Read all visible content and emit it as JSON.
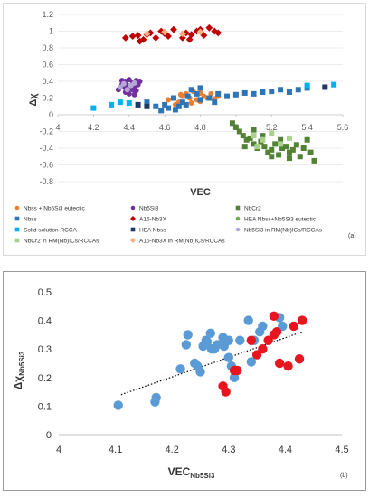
{
  "chart_data": [
    {
      "type": "scatter",
      "panel_label": "(a)",
      "xlabel": "VEC",
      "ylabel": "Δχ",
      "xlim": [
        4,
        5.6
      ],
      "ylim": [
        -0.8,
        1.2
      ],
      "xticks": [
        "4",
        "4.2",
        "4.4",
        "4.6",
        "4.8",
        "5",
        "5.2",
        "5.4",
        "5.6"
      ],
      "yticks": [
        "1.2",
        "1",
        "0.8",
        "0.6",
        "0.4",
        "0.2",
        "0",
        "-0.2",
        "-0.4",
        "-0.6",
        "-0.8"
      ],
      "grid": true,
      "legend_position": "bottom",
      "series": [
        {
          "name": "Nbss + Nb5Si3 eutectic",
          "color": "#ed7d31",
          "marker": "circle",
          "points": [
            [
              4.62,
              0.18
            ],
            [
              4.65,
              0.2
            ],
            [
              4.68,
              0.15
            ],
            [
              4.7,
              0.22
            ],
            [
              4.72,
              0.25
            ],
            [
              4.74,
              0.2
            ],
            [
              4.76,
              0.28
            ],
            [
              4.78,
              0.18
            ],
            [
              4.8,
              0.16
            ],
            [
              4.82,
              0.22
            ],
            [
              4.84,
              0.2
            ],
            [
              4.86,
              0.25
            ],
            [
              4.66,
              0.12
            ],
            [
              4.75,
              0.14
            ],
            [
              4.88,
              0.19
            ],
            [
              4.9,
              0.22
            ],
            [
              4.69,
              0.24
            ],
            [
              4.8,
              0.26
            ]
          ]
        },
        {
          "name": "Nb5Si3",
          "color": "#7030a0",
          "marker": "circle",
          "points": [
            [
              4.34,
              0.3
            ],
            [
              4.36,
              0.36
            ],
            [
              4.37,
              0.33
            ],
            [
              4.38,
              0.4
            ],
            [
              4.39,
              0.35
            ],
            [
              4.4,
              0.42
            ],
            [
              4.41,
              0.31
            ],
            [
              4.42,
              0.38
            ],
            [
              4.43,
              0.34
            ],
            [
              4.44,
              0.29
            ],
            [
              4.45,
              0.36
            ],
            [
              4.46,
              0.4
            ],
            [
              4.38,
              0.27
            ],
            [
              4.4,
              0.25
            ],
            [
              4.42,
              0.3
            ],
            [
              4.44,
              0.41
            ],
            [
              4.36,
              0.41
            ],
            [
              4.43,
              0.24
            ]
          ]
        },
        {
          "name": "NbCr2",
          "color": "#548235",
          "marker": "square",
          "points": [
            [
              4.98,
              -0.1
            ],
            [
              5.0,
              -0.15
            ],
            [
              5.02,
              -0.2
            ],
            [
              5.04,
              -0.25
            ],
            [
              5.06,
              -0.3
            ],
            [
              5.08,
              -0.28
            ],
            [
              5.1,
              -0.35
            ],
            [
              5.12,
              -0.4
            ],
            [
              5.14,
              -0.32
            ],
            [
              5.16,
              -0.38
            ],
            [
              5.18,
              -0.45
            ],
            [
              5.2,
              -0.42
            ],
            [
              5.22,
              -0.35
            ],
            [
              5.24,
              -0.48
            ],
            [
              5.26,
              -0.4
            ],
            [
              5.28,
              -0.38
            ],
            [
              5.3,
              -0.45
            ],
            [
              5.32,
              -0.42
            ],
            [
              5.34,
              -0.36
            ],
            [
              5.36,
              -0.5
            ],
            [
              5.38,
              -0.4
            ],
            [
              5.4,
              -0.3
            ],
            [
              5.42,
              -0.45
            ],
            [
              5.44,
              -0.55
            ],
            [
              5.15,
              -0.25
            ],
            [
              5.1,
              -0.18
            ],
            [
              5.25,
              -0.3
            ],
            [
              5.05,
              -0.38
            ],
            [
              5.2,
              -0.5
            ],
            [
              5.3,
              -0.52
            ]
          ]
        },
        {
          "name": "Nbss",
          "color": "#2e75b6",
          "marker": "square",
          "points": [
            [
              4.5,
              0.15
            ],
            [
              4.55,
              0.1
            ],
            [
              4.6,
              0.12
            ],
            [
              4.65,
              0.2
            ],
            [
              4.68,
              0.1
            ],
            [
              4.7,
              0.15
            ],
            [
              4.73,
              0.22
            ],
            [
              4.75,
              0.3
            ],
            [
              4.78,
              0.25
            ],
            [
              4.8,
              0.32
            ],
            [
              4.85,
              0.2
            ],
            [
              4.9,
              0.25
            ],
            [
              4.95,
              0.22
            ],
            [
              5.0,
              0.24
            ],
            [
              5.05,
              0.26
            ],
            [
              5.1,
              0.25
            ],
            [
              5.15,
              0.27
            ],
            [
              5.2,
              0.28
            ],
            [
              5.25,
              0.3
            ],
            [
              5.3,
              0.27
            ],
            [
              5.35,
              0.3
            ],
            [
              5.4,
              0.32
            ],
            [
              4.58,
              0.05
            ],
            [
              4.62,
              0.08
            ],
            [
              4.66,
              0.06
            ],
            [
              4.72,
              0.12
            ],
            [
              4.8,
              0.18
            ],
            [
              4.88,
              0.15
            ]
          ]
        },
        {
          "name": "A15-Nb3X",
          "color": "#c00000",
          "marker": "diamond",
          "points": [
            [
              4.38,
              0.92
            ],
            [
              4.42,
              0.94
            ],
            [
              4.45,
              0.95
            ],
            [
              4.48,
              0.9
            ],
            [
              4.5,
              0.96
            ],
            [
              4.52,
              0.98
            ],
            [
              4.55,
              0.92
            ],
            [
              4.58,
              1.0
            ],
            [
              4.6,
              0.97
            ],
            [
              4.62,
              0.94
            ],
            [
              4.65,
              1.02
            ],
            [
              4.7,
              0.92
            ],
            [
              4.72,
              0.98
            ],
            [
              4.75,
              0.96
            ],
            [
              4.78,
              1.0
            ],
            [
              4.8,
              1.02
            ],
            [
              4.82,
              0.95
            ],
            [
              4.85,
              1.04
            ],
            [
              4.88,
              1.0
            ],
            [
              4.9,
              0.98
            ],
            [
              4.46,
              0.88
            ],
            [
              4.74,
              0.9
            ]
          ]
        },
        {
          "name": "HEA Nbss+Nb5Si3 eutectic",
          "color": "#70ad47",
          "marker": "circle",
          "points": []
        },
        {
          "name": "Solid solution RCCA",
          "color": "#00b0f0",
          "marker": "square",
          "points": [
            [
              4.2,
              0.08
            ],
            [
              4.3,
              0.12
            ],
            [
              4.35,
              0.15
            ],
            [
              4.4,
              0.14
            ],
            [
              5.4,
              0.35
            ],
            [
              5.55,
              0.36
            ]
          ]
        },
        {
          "name": "HEA Nbss",
          "color": "#1f3864",
          "marker": "square",
          "points": [
            [
              4.45,
              0.12
            ],
            [
              4.5,
              0.1
            ],
            [
              5.5,
              0.33
            ]
          ]
        },
        {
          "name": "Nb5Si3 in RM(Nb)ICs/RCCAs",
          "color": "#b4a7d6",
          "marker": "circle",
          "points": [
            [
              4.35,
              0.33
            ],
            [
              4.37,
              0.37
            ],
            [
              4.39,
              0.3
            ],
            [
              4.41,
              0.35
            ],
            [
              4.43,
              0.38
            ]
          ]
        },
        {
          "name": "NbCr2 in RM(Nb)ICs/RCCAs",
          "color": "#a9d18e",
          "marker": "square",
          "points": [
            [
              5.1,
              -0.25
            ],
            [
              5.15,
              -0.3
            ],
            [
              5.2,
              -0.22
            ],
            [
              5.25,
              -0.35
            ],
            [
              5.3,
              -0.28
            ],
            [
              5.12,
              -0.38
            ]
          ]
        },
        {
          "name": "A15-Nb3X in RM(Nb)ICs/RCCAs",
          "color": "#f4b183",
          "marker": "diamond",
          "points": [
            [
              4.5,
              0.97
            ],
            [
              4.6,
              0.99
            ],
            [
              4.7,
              0.97
            ],
            [
              4.8,
              0.99
            ]
          ]
        }
      ]
    },
    {
      "type": "scatter",
      "panel_label": "(b)",
      "xlabel": "VEC",
      "xlabel_sub": "Nb5Si3",
      "ylabel": "Δχ",
      "ylabel_sub": "Nb5Si3",
      "xlim": [
        4,
        4.5
      ],
      "ylim": [
        0,
        0.5
      ],
      "xticks": [
        "4",
        "4.1",
        "4.2",
        "4.3",
        "4.4",
        "4.5"
      ],
      "yticks": [
        "0.5",
        "0.4",
        "0.3",
        "0.2",
        "0.1",
        "0"
      ],
      "grid": false,
      "trendline": {
        "style": "dotted",
        "color": "#000000",
        "from": [
          4.11,
          0.14
        ],
        "to": [
          4.43,
          0.36
        ]
      },
      "series": [
        {
          "color": "#5b9bd5",
          "points": [
            [
              4.105,
              0.103
            ],
            [
              4.17,
              0.115
            ],
            [
              4.172,
              0.13
            ],
            [
              4.215,
              0.23
            ],
            [
              4.225,
              0.315
            ],
            [
              4.228,
              0.35
            ],
            [
              4.24,
              0.25
            ],
            [
              4.245,
              0.24
            ],
            [
              4.25,
              0.22
            ],
            [
              4.255,
              0.31
            ],
            [
              4.26,
              0.33
            ],
            [
              4.262,
              0.325
            ],
            [
              4.268,
              0.355
            ],
            [
              4.27,
              0.3
            ],
            [
              4.275,
              0.3
            ],
            [
              4.28,
              0.315
            ],
            [
              4.29,
              0.34
            ],
            [
              4.292,
              0.31
            ],
            [
              4.295,
              0.33
            ],
            [
              4.3,
              0.33
            ],
            [
              4.3,
              0.27
            ],
            [
              4.305,
              0.24
            ],
            [
              4.31,
              0.2
            ],
            [
              4.32,
              0.33
            ],
            [
              4.335,
              0.4
            ],
            [
              4.34,
              0.255
            ],
            [
              4.345,
              0.33
            ],
            [
              4.355,
              0.36
            ],
            [
              4.36,
              0.38
            ],
            [
              4.39,
              0.41
            ],
            [
              4.395,
              0.38
            ]
          ]
        },
        {
          "color": "#e8141e",
          "points": [
            [
              4.29,
              0.17
            ],
            [
              4.295,
              0.15
            ],
            [
              4.31,
              0.225
            ],
            [
              4.315,
              0.225
            ],
            [
              4.34,
              0.33
            ],
            [
              4.35,
              0.28
            ],
            [
              4.36,
              0.3
            ],
            [
              4.37,
              0.33
            ],
            [
              4.38,
              0.35
            ],
            [
              4.38,
              0.415
            ],
            [
              4.385,
              0.36
            ],
            [
              4.39,
              0.25
            ],
            [
              4.405,
              0.24
            ],
            [
              4.415,
              0.38
            ],
            [
              4.425,
              0.265
            ],
            [
              4.43,
              0.4
            ]
          ]
        }
      ]
    }
  ]
}
